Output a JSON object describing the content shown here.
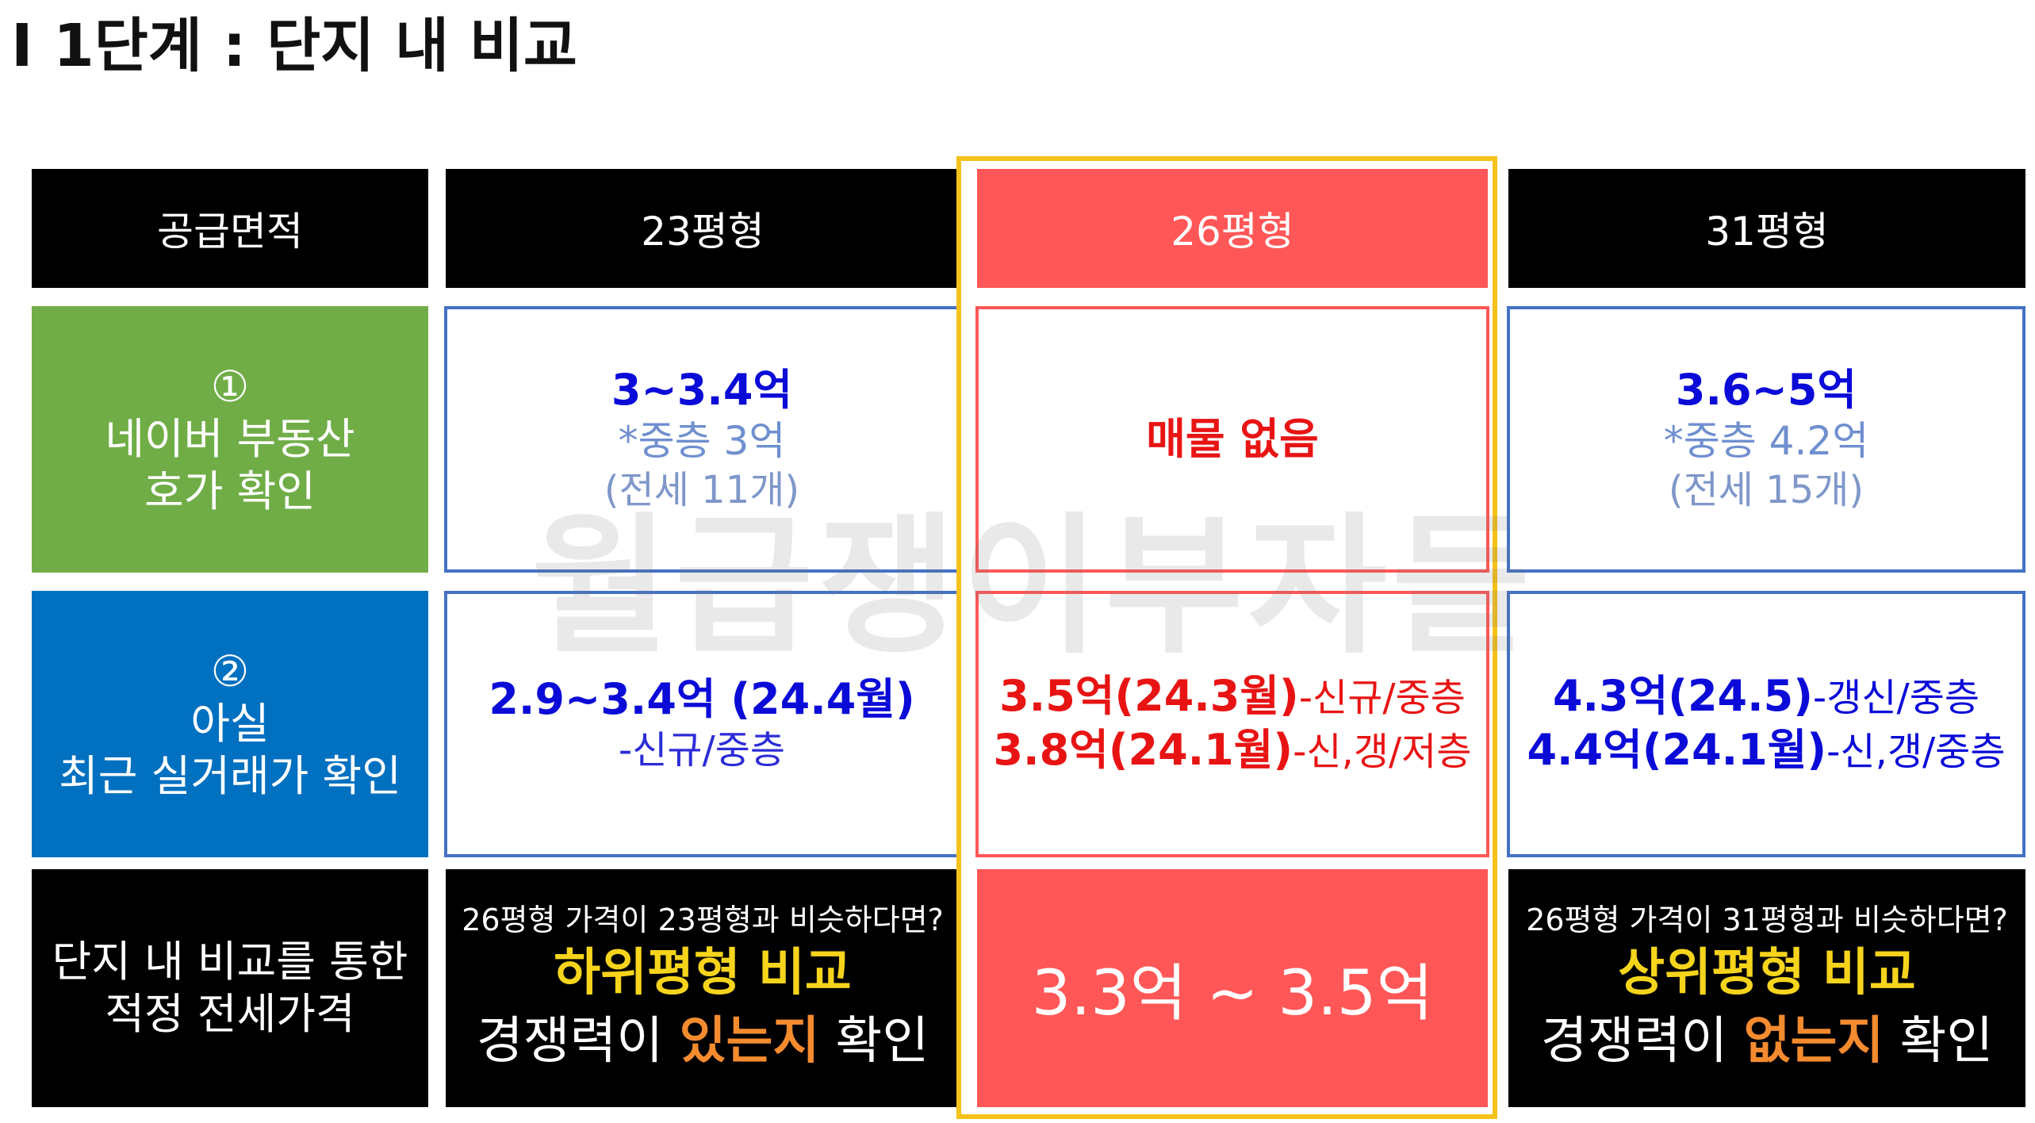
{
  "title": "I 1단계 : 단지 내 비교",
  "watermark": "월급쟁이부자들",
  "header": {
    "label": "공급면적",
    "col1": "23평형",
    "col2": "26평형",
    "col3": "31평형"
  },
  "row1": {
    "num": "①",
    "label1": "네이버 부동산",
    "label2": "호가 확인",
    "col1": {
      "main": "3~3.4억",
      "sub": "*중층 3억",
      "note": "(전세 11개)"
    },
    "col2": {
      "main": "매물 없음"
    },
    "col3": {
      "main": "3.6~5억",
      "sub": "*중층 4.2억",
      "note": "(전세 15개)"
    }
  },
  "row2": {
    "num": "②",
    "label1": "아실",
    "label2": "최근 실거래가 확인",
    "col1": {
      "main": "2.9~3.4억 (24.4월)",
      "sub": "-신규/중층"
    },
    "col2": {
      "line1_main": "3.5억(24.3월)",
      "line1_suffix": "-신규/중층",
      "line2_main": "3.8억(24.1월)",
      "line2_suffix": "-신,갱/저층"
    },
    "col3": {
      "line1_main": "4.3억(24.5)",
      "line1_suffix": "-갱신/중층",
      "line2_main": "4.4억(24.1월)",
      "line2_suffix": "-신,갱/중층"
    }
  },
  "row3": {
    "label1": "단지 내 비교를 통한",
    "label2": "적정 전세가격",
    "col1": {
      "question": "26평형 가격이 23평형과 비슷하다면?",
      "headline": "하위평형 비교",
      "line_pre": "경쟁력이 ",
      "line_em": "있는지",
      "line_post": " 확인"
    },
    "col2": {
      "range": "3.3억 ~ 3.5억"
    },
    "col3": {
      "question": "26평형 가격이 31평형과 비슷하다면?",
      "headline": "상위평형 비교",
      "line_pre": "경쟁력이 ",
      "line_em": "없는지",
      "line_post": " 확인"
    }
  },
  "colors": {
    "black": "#000000",
    "green": "#70ad47",
    "blue": "#0070c0",
    "red": "#ff5757",
    "yellow": "#f6c219",
    "orange": "#f58b2f",
    "box_outline": "#4472c4"
  }
}
